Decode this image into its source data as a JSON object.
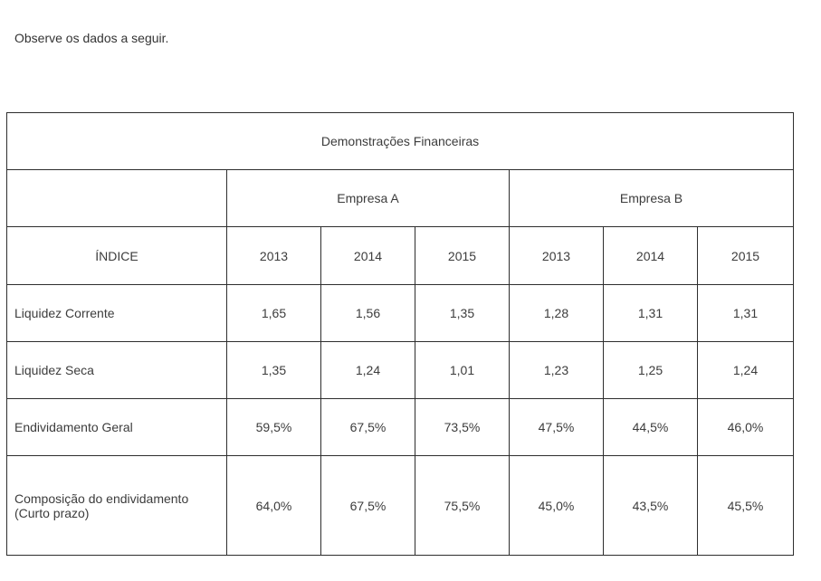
{
  "intro_text": "Observe os dados a seguir.",
  "table": {
    "title": "Demonstrações Financeiras",
    "companies": [
      "Empresa A",
      "Empresa B"
    ],
    "index_header": "ÍNDICE",
    "years": [
      "2013",
      "2014",
      "2015",
      "2013",
      "2014",
      "2015"
    ],
    "rows": [
      {
        "label": "Liquidez Corrente",
        "values": [
          "1,65",
          "1,56",
          "1,35",
          "1,28",
          "1,31",
          "1,31"
        ]
      },
      {
        "label": "Liquidez Seca",
        "values": [
          "1,35",
          "1,24",
          "1,01",
          "1,23",
          "1,25",
          "1,24"
        ]
      },
      {
        "label": "Endividamento Geral",
        "values": [
          "59,5%",
          "67,5%",
          "73,5%",
          "47,5%",
          "44,5%",
          "46,0%"
        ]
      },
      {
        "label": "Composição do endividamento (Curto prazo)",
        "values": [
          "64,0%",
          "67,5%",
          "75,5%",
          "45,0%",
          "43,5%",
          "45,5%"
        ]
      }
    ]
  }
}
